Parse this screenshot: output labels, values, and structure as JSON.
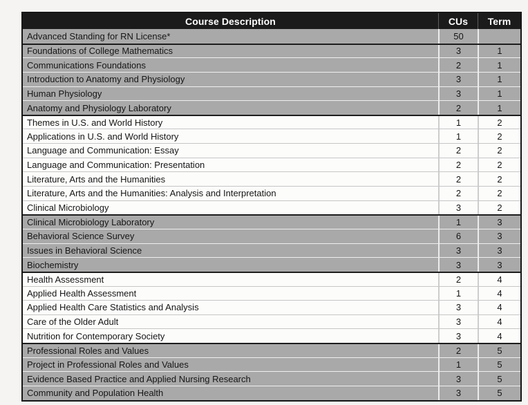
{
  "table": {
    "headers": [
      "Course Description",
      "CUs",
      "Term"
    ],
    "rows": [
      {
        "course": "Advanced Standing for RN License*",
        "cus": "50",
        "term": ""
      },
      {
        "course": "Foundations of College Mathematics",
        "cus": "3",
        "term": "1"
      },
      {
        "course": "Communications Foundations",
        "cus": "2",
        "term": "1"
      },
      {
        "course": "Introduction to Anatomy and Physiology",
        "cus": "3",
        "term": "1"
      },
      {
        "course": "Human Physiology",
        "cus": "3",
        "term": "1"
      },
      {
        "course": "Anatomy and Physiology Laboratory",
        "cus": "2",
        "term": "1"
      },
      {
        "course": "Themes in U.S. and World History",
        "cus": "1",
        "term": "2"
      },
      {
        "course": "Applications in U.S. and World History",
        "cus": "1",
        "term": "2"
      },
      {
        "course": "Language and Communication: Essay",
        "cus": "2",
        "term": "2"
      },
      {
        "course": "Language and Communication: Presentation",
        "cus": "2",
        "term": "2"
      },
      {
        "course": "Literature, Arts and the Humanities",
        "cus": "2",
        "term": "2"
      },
      {
        "course": "Literature, Arts and the Humanities: Analysis and Interpretation",
        "cus": "2",
        "term": "2"
      },
      {
        "course": "Clinical Microbiology",
        "cus": "3",
        "term": "2"
      },
      {
        "course": "Clinical Microbiology Laboratory",
        "cus": "1",
        "term": "3"
      },
      {
        "course": "Behavioral Science Survey",
        "cus": "6",
        "term": "3"
      },
      {
        "course": "Issues in Behavioral Science",
        "cus": "3",
        "term": "3"
      },
      {
        "course": "Biochemistry",
        "cus": "3",
        "term": "3"
      },
      {
        "course": "Health Assessment",
        "cus": "2",
        "term": "4"
      },
      {
        "course": "Applied Health Assessment",
        "cus": "1",
        "term": "4"
      },
      {
        "course": "Applied Health Care Statistics and Analysis",
        "cus": "3",
        "term": "4"
      },
      {
        "course": "Care of the Older Adult",
        "cus": "3",
        "term": "4"
      },
      {
        "course": "Nutrition for Contemporary Society",
        "cus": "3",
        "term": "4"
      },
      {
        "course": "Professional Roles and Values",
        "cus": "2",
        "term": "5"
      },
      {
        "course": "Project in Professional Roles and Values",
        "cus": "1",
        "term": "5"
      },
      {
        "course": "Evidence Based Practice and Applied Nursing Research",
        "cus": "3",
        "term": "5"
      },
      {
        "course": "Community and Population Health",
        "cus": "3",
        "term": "5"
      }
    ]
  },
  "colors": {
    "header_bg": "#1b1b1b",
    "header_text": "#ffffff",
    "row_gray": "#a9a9a9",
    "row_white": "#fcfcfb",
    "group_divider": "#1d1d1d",
    "page_bg": "#f5f4f2"
  }
}
